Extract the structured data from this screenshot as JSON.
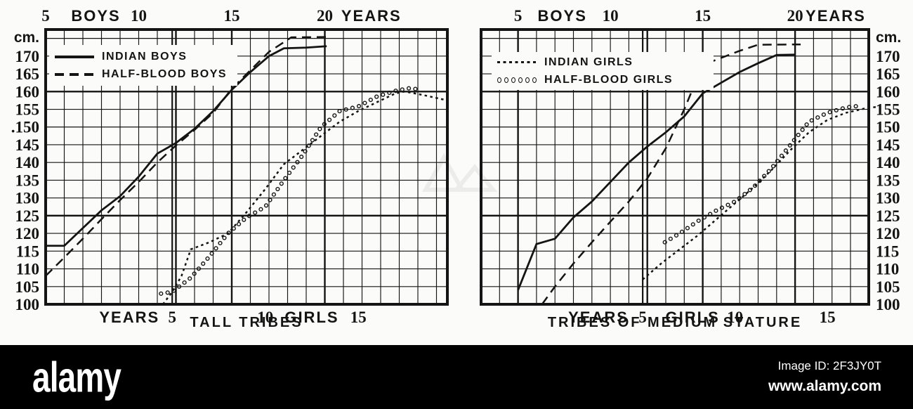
{
  "page": {
    "background": "#fbfbf9",
    "ink": "#141414"
  },
  "footer": {
    "brand": "alamy",
    "image_id": "Image ID: 2F3JY0T",
    "website": "www.alamy.com",
    "bar_color": "#000000",
    "text_color": "#ffffff"
  },
  "chart_data": [
    {
      "type": "line",
      "title": "TALL TRIBES",
      "grid": "1 year x 5 cm, grid on",
      "x_range_boys_years": [
        5,
        26.6
      ],
      "y_range_cm": [
        100,
        177.5
      ],
      "y_unit": "cm.",
      "y_tick_values": [
        170,
        165,
        160,
        155,
        150,
        145,
        140,
        135,
        130,
        125,
        120,
        115,
        110,
        105,
        100
      ],
      "y_tick_labels": [
        "170",
        "165",
        "160",
        "155",
        ".150",
        "145",
        "140",
        "135",
        "130",
        "125",
        "120",
        "115",
        "110",
        "105",
        "100"
      ],
      "y_axis_side": "left",
      "major_cms": [
        125,
        160
      ],
      "major_boys_ages": [
        15,
        20
      ],
      "major_girls_ages": [
        5
      ],
      "top_axis_items": [
        {
          "text": "5",
          "age": 5
        },
        {
          "text": "BOYS",
          "age": 7.7
        },
        {
          "text": "10",
          "age": 10
        },
        {
          "text": "15",
          "age": 15
        },
        {
          "text": "20",
          "age": 20
        },
        {
          "text": "YEARS",
          "age": 22.5
        }
      ],
      "bottom_axis_items": [
        {
          "text": "YEARS",
          "age": 2.7
        },
        {
          "text": "5",
          "age": 5
        },
        {
          "text": "10",
          "age": 10
        },
        {
          "text": "GIRLS",
          "age": 12.5
        },
        {
          "text": "15",
          "age": 15
        }
      ],
      "legend": [
        {
          "label": "INDIAN BOYS",
          "style": "solid"
        },
        {
          "label": "HALF-BLOOD BOYS",
          "style": "dashed"
        }
      ],
      "series": [
        {
          "name": "INDIAN BOYS",
          "style": "solid",
          "axis": "boys",
          "points": [
            [
              5,
              116.5
            ],
            [
              6,
              116.5
            ],
            [
              7,
              121.5
            ],
            [
              8,
              126.5
            ],
            [
              9,
              130.5
            ],
            [
              10,
              136
            ],
            [
              11,
              142.5
            ],
            [
              12,
              145.5
            ],
            [
              13,
              149.5
            ],
            [
              14,
              154.5
            ],
            [
              15,
              160.5
            ],
            [
              16,
              165.5
            ],
            [
              17,
              170
            ],
            [
              17.8,
              172.2
            ],
            [
              19,
              172.4
            ],
            [
              20.1,
              172.8
            ]
          ]
        },
        {
          "name": "HALF-BLOOD BOYS",
          "style": "dashed",
          "axis": "boys",
          "points": [
            [
              5,
              108
            ],
            [
              6,
              113.2
            ],
            [
              7,
              118.5
            ],
            [
              8,
              124
            ],
            [
              9,
              129.4
            ],
            [
              10,
              134.5
            ],
            [
              11,
              140
            ],
            [
              12,
              144.8
            ],
            [
              13,
              149.2
            ],
            [
              14,
              154
            ],
            [
              15,
              160.8
            ],
            [
              16,
              166
            ],
            [
              17,
              171.2
            ],
            [
              18.2,
              175.3
            ],
            [
              20.2,
              175.4
            ]
          ]
        },
        {
          "name": "INDIAN GIRLS",
          "style": "dotted",
          "axis": "girls",
          "points": [
            [
              4.5,
              100
            ],
            [
              5,
              103.5
            ],
            [
              5.5,
              108
            ],
            [
              6,
              115.5
            ],
            [
              7,
              117.5
            ],
            [
              8,
              120
            ],
            [
              9,
              126
            ],
            [
              10,
              132.5
            ],
            [
              11,
              139.5
            ],
            [
              12,
              143.5
            ],
            [
              13,
              147.5
            ],
            [
              14,
              151.5
            ],
            [
              15,
              154.5
            ],
            [
              16,
              157
            ],
            [
              17,
              159.5
            ],
            [
              17.5,
              160
            ],
            [
              18.5,
              159
            ],
            [
              19.8,
              157.5
            ]
          ]
        },
        {
          "name": "HALF-BLOOD GIRLS",
          "style": "circles",
          "axis": "girls",
          "points": [
            [
              4.4,
              103
            ],
            [
              5,
              103.5
            ],
            [
              6,
              107.5
            ],
            [
              7,
              113.5
            ],
            [
              8,
              120
            ],
            [
              9,
              124.5
            ],
            [
              10,
              127.5
            ],
            [
              11,
              135
            ],
            [
              12,
              142
            ],
            [
              13,
              150
            ],
            [
              14,
              154.5
            ],
            [
              15,
              155.8
            ],
            [
              16,
              158.6
            ],
            [
              17,
              160.2
            ],
            [
              17.8,
              161
            ],
            [
              18.2,
              160.6
            ]
          ]
        }
      ]
    },
    {
      "type": "line",
      "title": "TRIBES OF MEDIUM STATURE",
      "grid": "1 year x 5 cm, grid on",
      "x_range_boys_years": [
        3,
        24
      ],
      "y_range_cm": [
        100,
        177.5
      ],
      "y_unit": "cm.",
      "y_tick_values": [
        170,
        165,
        160,
        155,
        150,
        145,
        140,
        135,
        130,
        125,
        120,
        115,
        110,
        105,
        100
      ],
      "y_tick_labels": [
        "170",
        "165",
        "160",
        "155",
        "150",
        "145",
        "140",
        "135",
        "130",
        "125",
        "120",
        "115",
        "110",
        "105",
        "100"
      ],
      "y_axis_side": "right",
      "major_cms": [
        125,
        160
      ],
      "major_boys_ages": [
        5,
        15,
        20
      ],
      "major_girls_ages": [
        5
      ],
      "top_axis_items": [
        {
          "text": "5",
          "age": 5
        },
        {
          "text": "BOYS",
          "age": 7.4
        },
        {
          "text": "10",
          "age": 10
        },
        {
          "text": "15",
          "age": 15
        },
        {
          "text": "20",
          "age": 20
        },
        {
          "text": "YEARS",
          "age": 22.2
        }
      ],
      "bottom_axis_items": [
        {
          "text": "YEARS",
          "age": 2.6
        },
        {
          "text": "5",
          "age": 5
        },
        {
          "text": "GIRLS",
          "age": 7.7
        },
        {
          "text": "10",
          "age": 10
        },
        {
          "text": "15",
          "age": 15
        }
      ],
      "legend": [
        {
          "label": "INDIAN GIRLS",
          "style": "dotted"
        },
        {
          "label": "HALF-BLOOD GIRLS",
          "style": "circles"
        }
      ],
      "series": [
        {
          "name": "INDIAN BOYS",
          "style": "solid",
          "axis": "boys",
          "points": [
            [
              5,
              104
            ],
            [
              6,
              117
            ],
            [
              7,
              118.5
            ],
            [
              8,
              124.5
            ],
            [
              9,
              129
            ],
            [
              10,
              134.5
            ],
            [
              11,
              140
            ],
            [
              12,
              144.5
            ],
            [
              13,
              148.5
            ],
            [
              14,
              153
            ],
            [
              15,
              159.5
            ],
            [
              16,
              162.5
            ],
            [
              17,
              165.5
            ],
            [
              18,
              168
            ],
            [
              19,
              170.3
            ],
            [
              20,
              170.4
            ]
          ]
        },
        {
          "name": "HALF-BLOOD BOYS",
          "style": "dashed",
          "axis": "boys",
          "points": [
            [
              6.3,
              100
            ],
            [
              7,
              105
            ],
            [
              8,
              111.5
            ],
            [
              9,
              117.5
            ],
            [
              10,
              123.3
            ],
            [
              11,
              129
            ],
            [
              12,
              135.5
            ],
            [
              13,
              144
            ],
            [
              14,
              155
            ],
            [
              15,
              167.5
            ],
            [
              16,
              169.5
            ],
            [
              17,
              171.5
            ],
            [
              18,
              173.2
            ],
            [
              20.3,
              173.3
            ]
          ]
        },
        {
          "name": "INDIAN GIRLS",
          "style": "dotted",
          "axis": "girls",
          "points": [
            [
              5,
              107
            ],
            [
              6,
              111.5
            ],
            [
              7,
              115.5
            ],
            [
              8,
              119.5
            ],
            [
              9,
              124
            ],
            [
              10,
              128.5
            ],
            [
              11,
              133
            ],
            [
              12,
              138
            ],
            [
              13,
              143.5
            ],
            [
              14,
              148.5
            ],
            [
              15,
              152
            ],
            [
              16,
              154
            ],
            [
              17,
              155.2
            ],
            [
              17.7,
              155.7
            ]
          ]
        },
        {
          "name": "HALF-BLOOD GIRLS",
          "style": "circles",
          "axis": "girls",
          "points": [
            [
              6.2,
              117.5
            ],
            [
              7,
              120
            ],
            [
              8,
              123.5
            ],
            [
              9,
              126.5
            ],
            [
              10,
              129
            ],
            [
              11,
              133
            ],
            [
              12,
              138.5
            ],
            [
              13,
              145
            ],
            [
              14,
              151.5
            ],
            [
              15,
              154
            ],
            [
              16,
              155.5
            ],
            [
              16.6,
              155.9
            ]
          ]
        }
      ]
    }
  ]
}
